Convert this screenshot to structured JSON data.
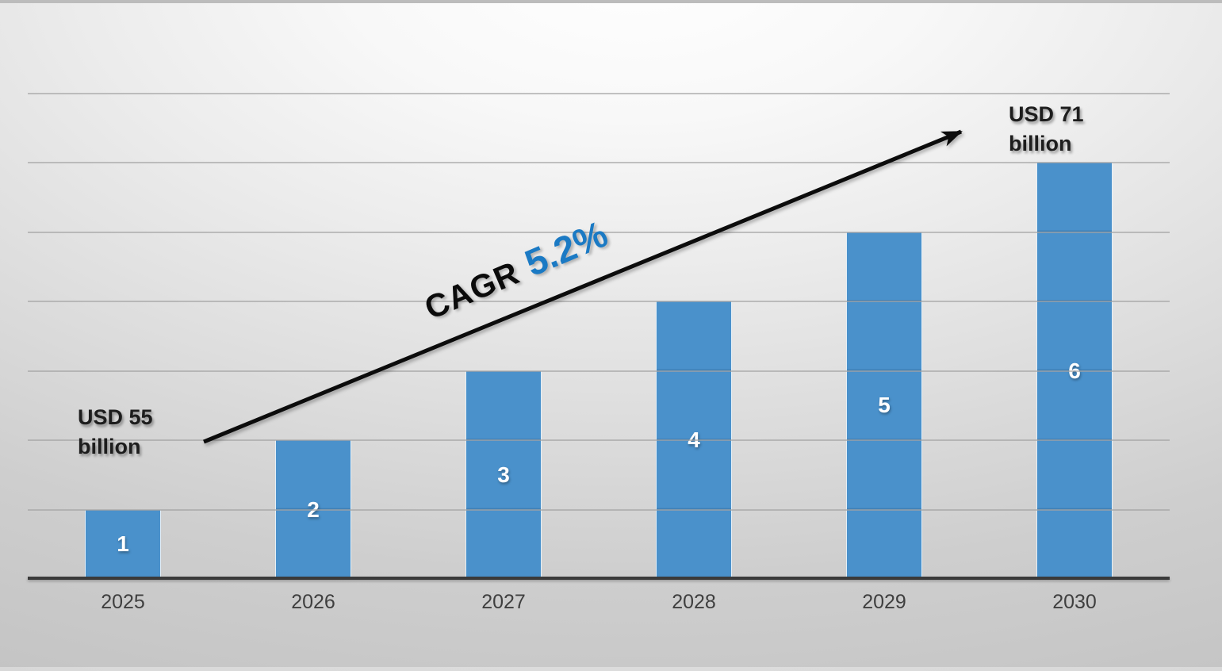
{
  "chart_data": {
    "type": "bar",
    "title": "",
    "xlabel": "",
    "ylabel": "",
    "categories": [
      "2025",
      "2026",
      "2027",
      "2028",
      "2029",
      "2030"
    ],
    "values": [
      1,
      2,
      3,
      4,
      5,
      6
    ],
    "bar_labels": [
      "1",
      "2",
      "3",
      "4",
      "5",
      "6"
    ],
    "ylim": [
      0,
      7
    ],
    "grid": true,
    "legend": false,
    "annotations": {
      "start_value": "USD  55\nbillion",
      "end_value": "USD 71\nbillion",
      "cagr_prefix": "CAGR",
      "cagr_value": "5.2%"
    },
    "trend_arrow": true
  },
  "colors": {
    "bar": "#4A91CB",
    "grid": "#a3a3a3",
    "axis": "#3a3a3a",
    "tick_label": "#3f3f3f",
    "annotation_text": "#1d1d1d",
    "arrow": "#0c0c0c",
    "cagr_value_blue": "#1B7AC4",
    "bar_value_label": "#ffffff"
  }
}
